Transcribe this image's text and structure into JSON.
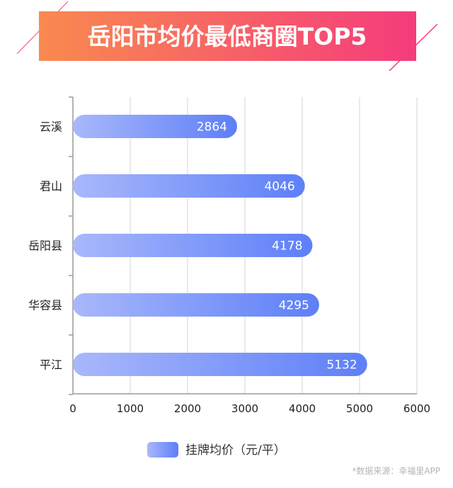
{
  "title": "岳阳市均价最低商圈TOP5",
  "source_note": "*数据来源：幸福里APP",
  "colors": {
    "banner_start": "#f98a4f",
    "banner_end": "#f53b7c",
    "bar_start": "#a9b8fb",
    "bar_end": "#5d7ff8",
    "grid": "#d4d4d4",
    "axis": "#9a9a9a"
  },
  "chart_data": {
    "type": "bar",
    "orientation": "horizontal",
    "categories": [
      "云溪",
      "君山",
      "岳阳县",
      "华容县",
      "平江"
    ],
    "series": [
      {
        "name": "挂牌均价（元/平）",
        "values": [
          2864,
          4046,
          4178,
          4295,
          5132
        ]
      }
    ],
    "xlim": [
      0,
      6000
    ],
    "xticks": [
      0,
      1000,
      2000,
      3000,
      4000,
      5000,
      6000
    ],
    "grid": true,
    "legend": "bottom-center",
    "data_labels": true
  }
}
